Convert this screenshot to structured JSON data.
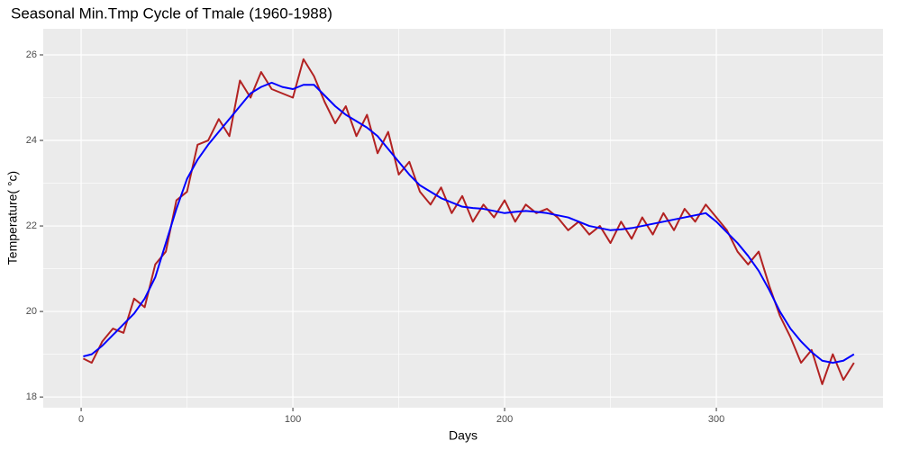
{
  "chart_data": {
    "type": "line",
    "title": "Seasonal Min.Tmp Cycle of Tmale (1960-1988)",
    "x_label": "Days",
    "y_label": "Temperature( °c)",
    "x": [
      1,
      5,
      10,
      15,
      20,
      25,
      30,
      35,
      40,
      45,
      50,
      55,
      60,
      65,
      70,
      75,
      80,
      85,
      90,
      95,
      100,
      105,
      110,
      115,
      120,
      125,
      130,
      135,
      140,
      145,
      150,
      155,
      160,
      165,
      170,
      175,
      180,
      185,
      190,
      195,
      200,
      205,
      210,
      215,
      220,
      225,
      230,
      235,
      240,
      245,
      250,
      255,
      260,
      265,
      270,
      275,
      280,
      285,
      290,
      295,
      300,
      305,
      310,
      315,
      320,
      325,
      330,
      335,
      340,
      345,
      350,
      355,
      360,
      365
    ],
    "series": [
      {
        "color": "#b22222",
        "values": [
          18.9,
          18.8,
          19.3,
          19.6,
          19.5,
          20.3,
          20.1,
          21.1,
          21.4,
          22.6,
          22.8,
          23.9,
          24.0,
          24.5,
          24.1,
          25.4,
          25.0,
          25.6,
          25.2,
          25.1,
          25.0,
          25.9,
          25.5,
          24.9,
          24.4,
          24.8,
          24.1,
          24.6,
          23.7,
          24.2,
          23.2,
          23.5,
          22.8,
          22.5,
          22.9,
          22.3,
          22.7,
          22.1,
          22.5,
          22.2,
          22.6,
          22.1,
          22.5,
          22.3,
          22.4,
          22.2,
          21.9,
          22.1,
          21.8,
          22.0,
          21.6,
          22.1,
          21.7,
          22.2,
          21.8,
          22.3,
          21.9,
          22.4,
          22.1,
          22.5,
          22.2,
          21.9,
          21.4,
          21.1,
          21.4,
          20.6,
          19.9,
          19.4,
          18.8,
          19.1,
          18.3,
          19.0,
          18.4,
          18.8
        ]
      },
      {
        "color": "#0000ff",
        "values": [
          18.95,
          19.0,
          19.2,
          19.45,
          19.7,
          19.95,
          20.3,
          20.8,
          21.6,
          22.4,
          23.1,
          23.55,
          23.9,
          24.2,
          24.5,
          24.8,
          25.1,
          25.25,
          25.35,
          25.25,
          25.2,
          25.3,
          25.3,
          25.05,
          24.8,
          24.6,
          24.45,
          24.3,
          24.1,
          23.8,
          23.5,
          23.2,
          22.95,
          22.8,
          22.65,
          22.55,
          22.45,
          22.42,
          22.4,
          22.35,
          22.3,
          22.33,
          22.35,
          22.33,
          22.3,
          22.25,
          22.2,
          22.1,
          22.0,
          21.95,
          21.9,
          21.92,
          21.95,
          22.0,
          22.05,
          22.1,
          22.15,
          22.2,
          22.25,
          22.3,
          22.1,
          21.85,
          21.6,
          21.3,
          20.95,
          20.5,
          20.0,
          19.6,
          19.3,
          19.05,
          18.85,
          18.8,
          18.85,
          19.0
        ]
      }
    ],
    "xlim": [
      -17.9,
      378.7
    ],
    "ylim": [
      17.75,
      26.61
    ],
    "xticks": [
      0,
      100,
      200,
      300
    ],
    "yticks": [
      18,
      20,
      22,
      24,
      26
    ],
    "grid": true
  }
}
